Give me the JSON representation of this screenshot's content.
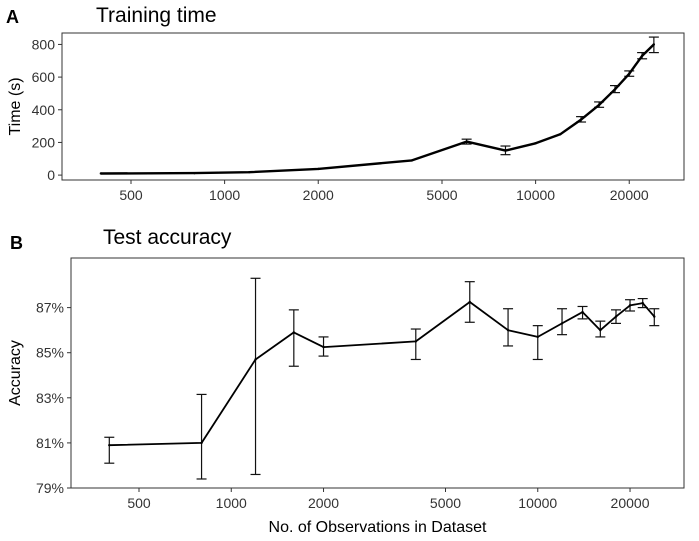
{
  "chart_data": [
    {
      "panel": "A",
      "type": "line",
      "title": "Training time",
      "xlabel": "",
      "ylabel": "Time (s)",
      "x_scale": "log",
      "xlim": [
        300,
        30000
      ],
      "ylim": [
        -30,
        870
      ],
      "x_ticks": [
        500,
        1000,
        2000,
        5000,
        10000,
        20000
      ],
      "x_tick_labels": [
        "500",
        "1000",
        "2000",
        "5000",
        "10000",
        "20000"
      ],
      "y_ticks": [
        0,
        200,
        400,
        600,
        800
      ],
      "y_tick_labels": [
        "0",
        "200",
        "400",
        "600",
        "800"
      ],
      "grid": false,
      "x": [
        400,
        800,
        1200,
        2000,
        4000,
        6000,
        8000,
        10000,
        12000,
        14000,
        16000,
        18000,
        20000,
        22000,
        24000
      ],
      "values": [
        10,
        12,
        18,
        38,
        90,
        205,
        150,
        195,
        250,
        340,
        430,
        525,
        620,
        730,
        800
      ],
      "err_low": [
        0,
        0,
        0,
        0,
        0,
        190,
        125,
        0,
        0,
        325,
        415,
        505,
        605,
        712,
        750
      ],
      "err_high": [
        0,
        0,
        0,
        0,
        0,
        220,
        178,
        0,
        0,
        358,
        448,
        548,
        638,
        750,
        845
      ]
    },
    {
      "panel": "B",
      "type": "line",
      "title": "Test accuracy",
      "xlabel": "No. of Observations in Dataset",
      "ylabel": "Accuracy",
      "x_scale": "log",
      "xlim": [
        300,
        30000
      ],
      "ylim": [
        79,
        89.2
      ],
      "x_ticks": [
        500,
        1000,
        2000,
        5000,
        10000,
        20000
      ],
      "x_tick_labels": [
        "500",
        "1000",
        "2000",
        "5000",
        "10000",
        "20000"
      ],
      "y_ticks": [
        79,
        81,
        83,
        85,
        87
      ],
      "y_tick_labels": [
        "79%",
        "81%",
        "83%",
        "85%",
        "87%"
      ],
      "grid": false,
      "x": [
        400,
        800,
        1200,
        1600,
        2000,
        4000,
        6000,
        8000,
        10000,
        12000,
        14000,
        16000,
        18000,
        20000,
        22000,
        24000
      ],
      "values": [
        80.9,
        81.0,
        84.7,
        85.9,
        85.25,
        85.5,
        87.25,
        86.0,
        85.7,
        86.3,
        86.8,
        86.0,
        86.6,
        87.1,
        87.2,
        86.6
      ],
      "err_low": [
        80.1,
        79.4,
        79.6,
        84.4,
        84.85,
        84.7,
        86.35,
        85.3,
        84.7,
        85.8,
        86.5,
        85.7,
        86.3,
        86.85,
        87.0,
        86.2
      ],
      "err_high": [
        81.25,
        83.15,
        88.3,
        86.9,
        85.7,
        86.05,
        88.15,
        86.95,
        86.2,
        86.95,
        87.05,
        86.4,
        86.9,
        87.35,
        87.4,
        86.95
      ]
    }
  ]
}
